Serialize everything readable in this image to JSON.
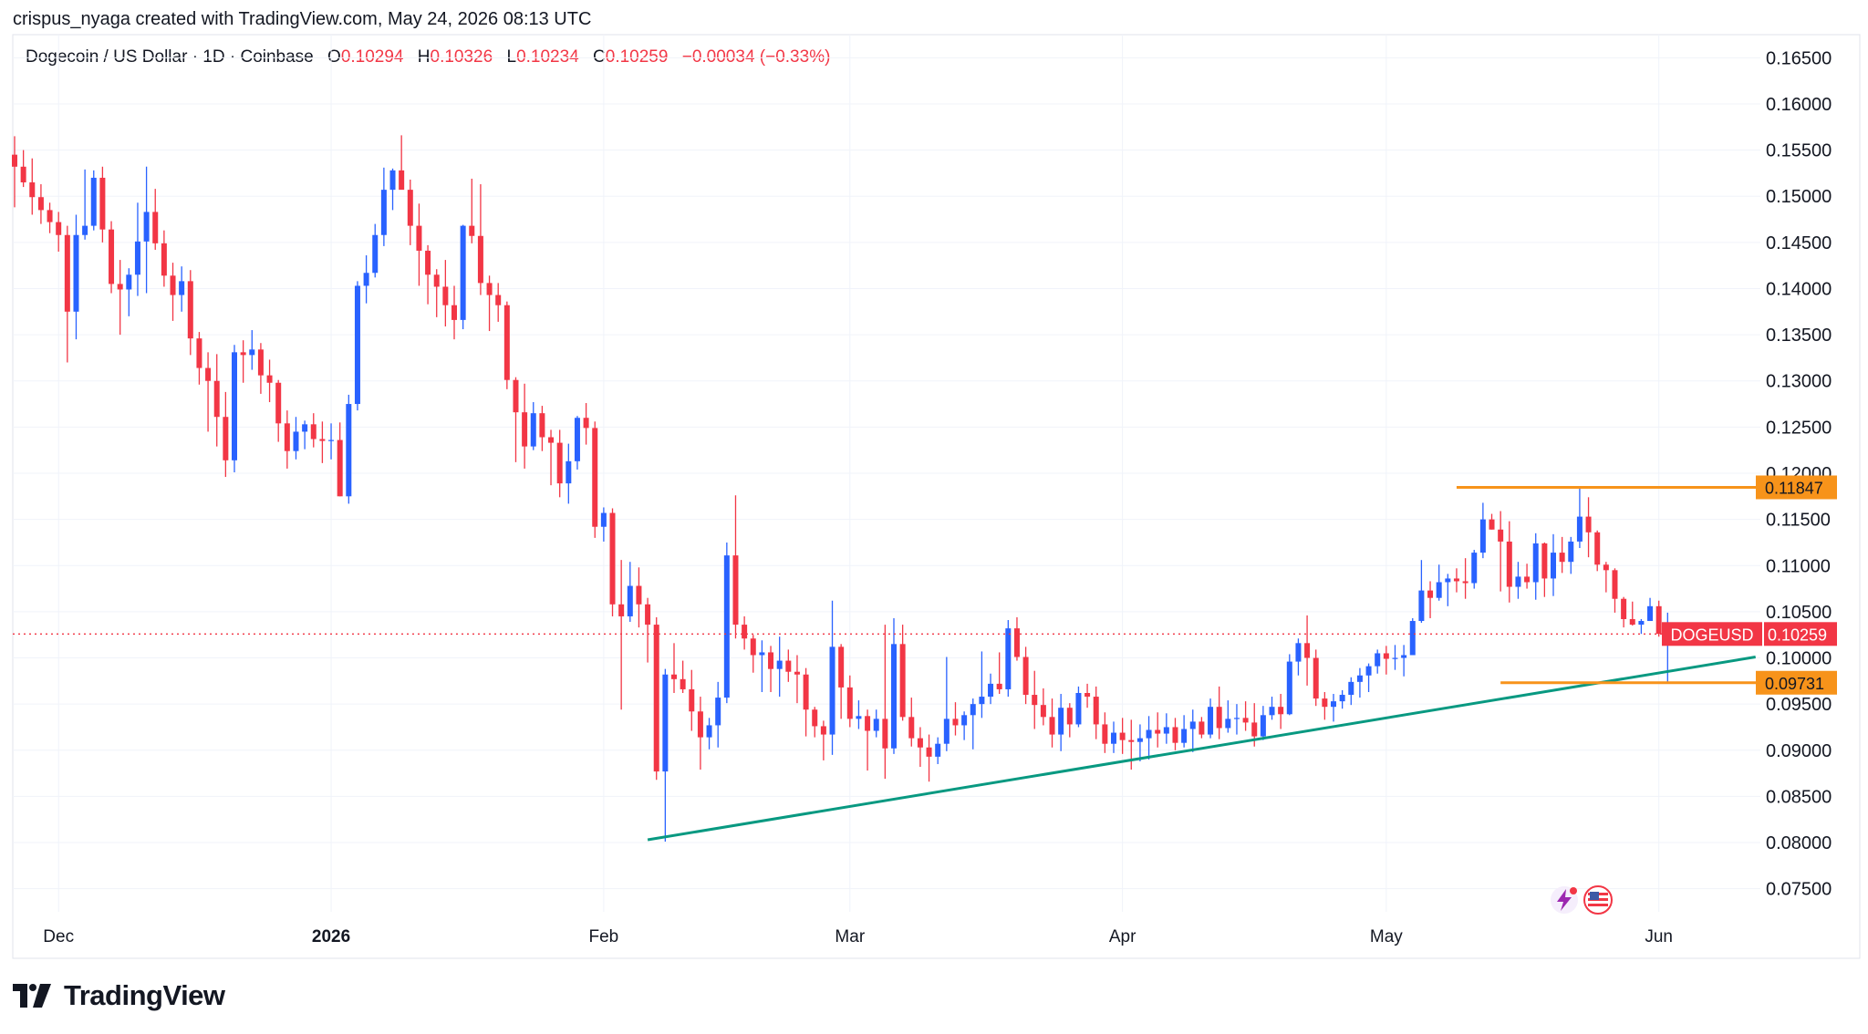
{
  "header": {
    "credit": "crispus_nyaga created with TradingView.com, May 24, 2026 08:13 UTC",
    "symbol_desc": "Dogecoin / US Dollar · 1D · Coinbase",
    "o_label": "O",
    "o_value": "0.10294",
    "h_label": "H",
    "h_value": "0.10326",
    "l_label": "L",
    "l_value": "0.10234",
    "c_label": "C",
    "c_value": "0.10259",
    "change": "−0.00034 (−0.33%)"
  },
  "branding": {
    "name": "TradingView",
    "icon": "tradingview-logo-icon"
  },
  "icons": {
    "lightning": "lightning-icon",
    "flag": "us-flag-icon"
  },
  "colors": {
    "up": "#2962ff",
    "down": "#f23645",
    "trendline": "#089981",
    "level": "#f7931a",
    "grid": "#f0f3fa",
    "price_line": "#f23645"
  },
  "chart_data": {
    "type": "candlestick",
    "title": "Dogecoin / US Dollar · 1D · Coinbase",
    "symbol": "DOGEUSD",
    "last_price": 0.10259,
    "y_range": [
      0.0725,
      0.1675
    ],
    "y_ticks": [
      "0.16500",
      "0.16000",
      "0.15500",
      "0.15000",
      "0.14500",
      "0.14000",
      "0.13500",
      "0.13000",
      "0.12500",
      "0.12000",
      "0.11500",
      "0.11000",
      "0.10500",
      "0.10000",
      "0.09500",
      "0.09000",
      "0.08500",
      "0.08000",
      "0.07500"
    ],
    "x_ticks": [
      {
        "label": "Dec",
        "date": "2025-12-01",
        "bold": false
      },
      {
        "label": "2026",
        "date": "2026-01-01",
        "bold": true
      },
      {
        "label": "Feb",
        "date": "2026-02-01",
        "bold": false
      },
      {
        "label": "Mar",
        "date": "2026-03-01",
        "bold": false
      },
      {
        "label": "Apr",
        "date": "2026-04-01",
        "bold": false
      },
      {
        "label": "May",
        "date": "2026-05-01",
        "bold": false
      },
      {
        "label": "Jun",
        "date": "2026-06-01",
        "bold": false
      }
    ],
    "price_labels": [
      {
        "label": "DOGEUSD",
        "value": 0.10259,
        "kind": "last"
      },
      {
        "label": "0.11847",
        "value": 0.11847,
        "kind": "level"
      },
      {
        "label": "0.09731",
        "value": 0.09731,
        "kind": "level"
      }
    ],
    "horizontal_levels": [
      {
        "value": 0.11847,
        "from": "2026-05-09",
        "to": "2026-06-24"
      },
      {
        "value": 0.09731,
        "from": "2026-05-14",
        "to": "2026-06-24"
      }
    ],
    "trendline": {
      "from": {
        "date": "2026-02-06",
        "value": 0.0803
      },
      "to": {
        "date": "2026-06-12",
        "value": 0.1001
      }
    },
    "start_date": "2025-11-26",
    "ohlc": [
      [
        0.1545,
        0.1565,
        0.1488,
        0.1532
      ],
      [
        0.1532,
        0.155,
        0.151,
        0.1515
      ],
      [
        0.1515,
        0.1541,
        0.148,
        0.1499
      ],
      [
        0.1499,
        0.1513,
        0.147,
        0.1485
      ],
      [
        0.1485,
        0.1493,
        0.146,
        0.1472
      ],
      [
        0.1472,
        0.1483,
        0.144,
        0.1458
      ],
      [
        0.1458,
        0.1468,
        0.132,
        0.1375
      ],
      [
        0.1375,
        0.148,
        0.1345,
        0.1458
      ],
      [
        0.1458,
        0.1529,
        0.1453,
        0.1468
      ],
      [
        0.1468,
        0.1528,
        0.1463,
        0.152
      ],
      [
        0.152,
        0.1532,
        0.145,
        0.1464
      ],
      [
        0.1464,
        0.1473,
        0.1395,
        0.1405
      ],
      [
        0.1405,
        0.1431,
        0.135,
        0.1399
      ],
      [
        0.1399,
        0.1422,
        0.137,
        0.1415
      ],
      [
        0.1415,
        0.1493,
        0.1392,
        0.1451
      ],
      [
        0.1451,
        0.1532,
        0.1395,
        0.1483
      ],
      [
        0.1483,
        0.1508,
        0.1442,
        0.1449
      ],
      [
        0.1449,
        0.1463,
        0.1402,
        0.1414
      ],
      [
        0.1414,
        0.1428,
        0.1365,
        0.1393
      ],
      [
        0.1393,
        0.1424,
        0.1375,
        0.1408
      ],
      [
        0.1408,
        0.142,
        0.1328,
        0.1346
      ],
      [
        0.1346,
        0.1353,
        0.1296,
        0.1314
      ],
      [
        0.1314,
        0.1331,
        0.1245,
        0.13
      ],
      [
        0.13,
        0.1329,
        0.1229,
        0.1261
      ],
      [
        0.1261,
        0.1288,
        0.1196,
        0.1214
      ],
      [
        0.1214,
        0.1339,
        0.1201,
        0.1331
      ],
      [
        0.1331,
        0.1344,
        0.1298,
        0.1328
      ],
      [
        0.1328,
        0.1355,
        0.1312,
        0.1334
      ],
      [
        0.1334,
        0.1341,
        0.1286,
        0.1306
      ],
      [
        0.1306,
        0.1323,
        0.1277,
        0.1298
      ],
      [
        0.1298,
        0.1301,
        0.1234,
        0.1254
      ],
      [
        0.1254,
        0.1268,
        0.1205,
        0.1224
      ],
      [
        0.1224,
        0.1261,
        0.1215,
        0.1245
      ],
      [
        0.1245,
        0.1257,
        0.1226,
        0.1253
      ],
      [
        0.1253,
        0.1265,
        0.1228,
        0.1237
      ],
      [
        0.1237,
        0.1256,
        0.1211,
        0.1235
      ],
      [
        0.1235,
        0.1254,
        0.1215,
        0.1236
      ],
      [
        0.1236,
        0.1255,
        0.1175,
        0.1175
      ],
      [
        0.1175,
        0.1285,
        0.1167,
        0.1275
      ],
      [
        0.1275,
        0.1408,
        0.1268,
        0.1403
      ],
      [
        0.1403,
        0.1436,
        0.1384,
        0.1417
      ],
      [
        0.1417,
        0.147,
        0.1412,
        0.1458
      ],
      [
        0.1458,
        0.1531,
        0.1446,
        0.1507
      ],
      [
        0.1507,
        0.153,
        0.1485,
        0.1528
      ],
      [
        0.1528,
        0.1566,
        0.1512,
        0.1507
      ],
      [
        0.1507,
        0.1518,
        0.1447,
        0.1468
      ],
      [
        0.1468,
        0.1492,
        0.1403,
        0.1441
      ],
      [
        0.1441,
        0.1447,
        0.1383,
        0.1415
      ],
      [
        0.1415,
        0.1421,
        0.1369,
        0.1402
      ],
      [
        0.1402,
        0.1431,
        0.1359,
        0.1382
      ],
      [
        0.1382,
        0.1403,
        0.1345,
        0.1366
      ],
      [
        0.1366,
        0.1469,
        0.1356,
        0.1468
      ],
      [
        0.1468,
        0.1519,
        0.1449,
        0.1457
      ],
      [
        0.1457,
        0.1513,
        0.1393,
        0.1406
      ],
      [
        0.1406,
        0.1414,
        0.1354,
        0.1393
      ],
      [
        0.1393,
        0.1406,
        0.1364,
        0.1382
      ],
      [
        0.1382,
        0.1386,
        0.1291,
        0.1301
      ],
      [
        0.1301,
        0.1304,
        0.1212,
        0.1266
      ],
      [
        0.1266,
        0.1297,
        0.1205,
        0.1229
      ],
      [
        0.1229,
        0.1277,
        0.1225,
        0.1265
      ],
      [
        0.1265,
        0.1273,
        0.1224,
        0.1239
      ],
      [
        0.1239,
        0.1247,
        0.1187,
        0.1233
      ],
      [
        0.1233,
        0.1247,
        0.1174,
        0.1189
      ],
      [
        0.1189,
        0.1232,
        0.1167,
        0.1213
      ],
      [
        0.1213,
        0.1262,
        0.1204,
        0.126
      ],
      [
        0.126,
        0.1276,
        0.1231,
        0.1249
      ],
      [
        0.1249,
        0.1256,
        0.113,
        0.1142
      ],
      [
        0.1142,
        0.1163,
        0.1126,
        0.1157
      ],
      [
        0.1157,
        0.1162,
        0.1045,
        0.1058
      ],
      [
        0.1058,
        0.1106,
        0.0944,
        0.1045
      ],
      [
        0.1045,
        0.1104,
        0.1039,
        0.1078
      ],
      [
        0.1078,
        0.1098,
        0.1033,
        0.1058
      ],
      [
        0.1058,
        0.1065,
        0.0995,
        0.1036
      ],
      [
        0.1036,
        0.1044,
        0.0868,
        0.0877
      ],
      [
        0.0877,
        0.0988,
        0.0801,
        0.0982
      ],
      [
        0.0982,
        0.1016,
        0.0962,
        0.0977
      ],
      [
        0.0977,
        0.0997,
        0.0962,
        0.0966
      ],
      [
        0.0966,
        0.0987,
        0.0921,
        0.0942
      ],
      [
        0.0942,
        0.0958,
        0.0879,
        0.0914
      ],
      [
        0.0914,
        0.0935,
        0.0901,
        0.0927
      ],
      [
        0.0927,
        0.0974,
        0.0903,
        0.0957
      ],
      [
        0.0957,
        0.1125,
        0.0951,
        0.1111
      ],
      [
        0.1111,
        0.1176,
        0.1021,
        0.1036
      ],
      [
        0.1036,
        0.1045,
        0.1009,
        0.1021
      ],
      [
        0.1021,
        0.1025,
        0.0984,
        0.1003
      ],
      [
        0.1003,
        0.1019,
        0.0963,
        0.1006
      ],
      [
        0.1006,
        0.1013,
        0.0963,
        0.0988
      ],
      [
        0.0988,
        0.1023,
        0.0958,
        0.0997
      ],
      [
        0.0997,
        0.1009,
        0.0974,
        0.0985
      ],
      [
        0.0985,
        0.1003,
        0.0951,
        0.0982
      ],
      [
        0.0982,
        0.0989,
        0.0915,
        0.0944
      ],
      [
        0.0944,
        0.0947,
        0.0914,
        0.0926
      ],
      [
        0.0926,
        0.0932,
        0.0889,
        0.0917
      ],
      [
        0.0917,
        0.1062,
        0.0895,
        0.1012
      ],
      [
        0.1012,
        0.1015,
        0.0934,
        0.0968
      ],
      [
        0.0968,
        0.0981,
        0.0925,
        0.0934
      ],
      [
        0.0934,
        0.0954,
        0.0923,
        0.0937
      ],
      [
        0.0937,
        0.0944,
        0.0878,
        0.0921
      ],
      [
        0.0921,
        0.0944,
        0.0914,
        0.0934
      ],
      [
        0.0934,
        0.1036,
        0.0869,
        0.0902
      ],
      [
        0.0902,
        0.1043,
        0.0896,
        0.1015
      ],
      [
        0.1015,
        0.1036,
        0.0932,
        0.0936
      ],
      [
        0.0936,
        0.0957,
        0.0904,
        0.0913
      ],
      [
        0.0913,
        0.0925,
        0.0882,
        0.0903
      ],
      [
        0.0903,
        0.0917,
        0.0866,
        0.0893
      ],
      [
        0.0893,
        0.0914,
        0.0885,
        0.0907
      ],
      [
        0.0907,
        0.1001,
        0.0899,
        0.0934
      ],
      [
        0.0934,
        0.0952,
        0.0916,
        0.0927
      ],
      [
        0.0927,
        0.0942,
        0.0911,
        0.0938
      ],
      [
        0.0938,
        0.0956,
        0.0901,
        0.095
      ],
      [
        0.095,
        0.1007,
        0.0935,
        0.0958
      ],
      [
        0.0958,
        0.0983,
        0.095,
        0.0972
      ],
      [
        0.0972,
        0.1006,
        0.0961,
        0.0966
      ],
      [
        0.0966,
        0.1041,
        0.0958,
        0.1032
      ],
      [
        0.1032,
        0.1044,
        0.0997,
        0.1001
      ],
      [
        0.1001,
        0.1012,
        0.095,
        0.096
      ],
      [
        0.096,
        0.0986,
        0.0923,
        0.0949
      ],
      [
        0.0949,
        0.0967,
        0.0927,
        0.0936
      ],
      [
        0.0936,
        0.0956,
        0.0903,
        0.0917
      ],
      [
        0.0917,
        0.0961,
        0.0899,
        0.0946
      ],
      [
        0.0946,
        0.0951,
        0.0914,
        0.0928
      ],
      [
        0.0928,
        0.0969,
        0.0925,
        0.0962
      ],
      [
        0.0962,
        0.0972,
        0.0946,
        0.0958
      ],
      [
        0.0958,
        0.0969,
        0.0912,
        0.0928
      ],
      [
        0.0928,
        0.0941,
        0.0897,
        0.0907
      ],
      [
        0.0907,
        0.0931,
        0.0897,
        0.0919
      ],
      [
        0.0919,
        0.0935,
        0.0896,
        0.0911
      ],
      [
        0.0911,
        0.0933,
        0.0879,
        0.0909
      ],
      [
        0.0909,
        0.0928,
        0.0888,
        0.0913
      ],
      [
        0.0913,
        0.0937,
        0.089,
        0.0922
      ],
      [
        0.0922,
        0.0941,
        0.0903,
        0.0918
      ],
      [
        0.0918,
        0.094,
        0.0907,
        0.0925
      ],
      [
        0.0925,
        0.0935,
        0.09,
        0.0908
      ],
      [
        0.0908,
        0.0938,
        0.0903,
        0.0923
      ],
      [
        0.0923,
        0.0944,
        0.0898,
        0.0931
      ],
      [
        0.0931,
        0.0936,
        0.0913,
        0.0917
      ],
      [
        0.0917,
        0.0956,
        0.0913,
        0.0947
      ],
      [
        0.0947,
        0.0969,
        0.0912,
        0.0924
      ],
      [
        0.0924,
        0.0954,
        0.0919,
        0.0934
      ],
      [
        0.0934,
        0.095,
        0.0917,
        0.0935
      ],
      [
        0.0935,
        0.0953,
        0.0921,
        0.093
      ],
      [
        0.093,
        0.0951,
        0.0904,
        0.0915
      ],
      [
        0.0915,
        0.0948,
        0.0911,
        0.0938
      ],
      [
        0.0938,
        0.0958,
        0.0933,
        0.0947
      ],
      [
        0.0947,
        0.0961,
        0.0923,
        0.0939
      ],
      [
        0.0939,
        0.1004,
        0.0938,
        0.0996
      ],
      [
        0.0996,
        0.1021,
        0.0981,
        0.1016
      ],
      [
        0.1016,
        0.1046,
        0.097,
        0.1
      ],
      [
        0.1,
        0.1009,
        0.0948,
        0.0956
      ],
      [
        0.0956,
        0.0963,
        0.0933,
        0.0947
      ],
      [
        0.0947,
        0.0961,
        0.0931,
        0.0953
      ],
      [
        0.0953,
        0.0965,
        0.0945,
        0.096
      ],
      [
        0.096,
        0.0979,
        0.0949,
        0.0974
      ],
      [
        0.0974,
        0.0989,
        0.0957,
        0.0981
      ],
      [
        0.0981,
        0.0994,
        0.0963,
        0.0991
      ],
      [
        0.0991,
        0.1009,
        0.0983,
        0.1005
      ],
      [
        0.1005,
        0.1013,
        0.0982,
        0.0999
      ],
      [
        0.0999,
        0.1014,
        0.0987,
        0.1
      ],
      [
        0.1,
        0.1014,
        0.098,
        0.1003
      ],
      [
        0.1003,
        0.1043,
        0.1003,
        0.104
      ],
      [
        0.104,
        0.1106,
        0.1038,
        0.1073
      ],
      [
        0.1073,
        0.1083,
        0.1043,
        0.1065
      ],
      [
        0.1065,
        0.1101,
        0.1062,
        0.1082
      ],
      [
        0.1082,
        0.1091,
        0.1056,
        0.1086
      ],
      [
        0.1086,
        0.1097,
        0.1071,
        0.1083
      ],
      [
        0.1083,
        0.1108,
        0.1064,
        0.1081
      ],
      [
        0.1081,
        0.1117,
        0.1075,
        0.1114
      ],
      [
        0.1114,
        0.1168,
        0.1108,
        0.115
      ],
      [
        0.115,
        0.1156,
        0.1139,
        0.1139
      ],
      [
        0.1139,
        0.1159,
        0.1072,
        0.1126
      ],
      [
        0.1126,
        0.1148,
        0.106,
        0.1077
      ],
      [
        0.1077,
        0.1104,
        0.1064,
        0.1088
      ],
      [
        0.1088,
        0.1102,
        0.1075,
        0.1082
      ],
      [
        0.1082,
        0.1135,
        0.1063,
        0.1124
      ],
      [
        0.1124,
        0.1125,
        0.1066,
        0.1086
      ],
      [
        0.1086,
        0.1134,
        0.1067,
        0.1114
      ],
      [
        0.1114,
        0.1131,
        0.1092,
        0.1104
      ],
      [
        0.1104,
        0.1131,
        0.1091,
        0.1126
      ],
      [
        0.1126,
        0.1185,
        0.1119,
        0.1153
      ],
      [
        0.1153,
        0.1174,
        0.1109,
        0.1136
      ],
      [
        0.1136,
        0.1138,
        0.1094,
        0.1101
      ],
      [
        0.1101,
        0.1104,
        0.1071,
        0.1095
      ],
      [
        0.1095,
        0.1097,
        0.1049,
        0.1064
      ],
      [
        0.1064,
        0.1066,
        0.1033,
        0.1042
      ],
      [
        0.1042,
        0.1061,
        0.1035,
        0.1036
      ],
      [
        0.1036,
        0.1042,
        0.1026,
        0.104
      ],
      [
        0.104,
        0.1065,
        0.104,
        0.1056
      ],
      [
        0.1056,
        0.1062,
        0.1023,
        0.1026
      ],
      [
        0.1026,
        0.1049,
        0.0973,
        0.1029
      ],
      [
        0.1029,
        0.1033,
        0.1023,
        0.1026
      ]
    ]
  }
}
